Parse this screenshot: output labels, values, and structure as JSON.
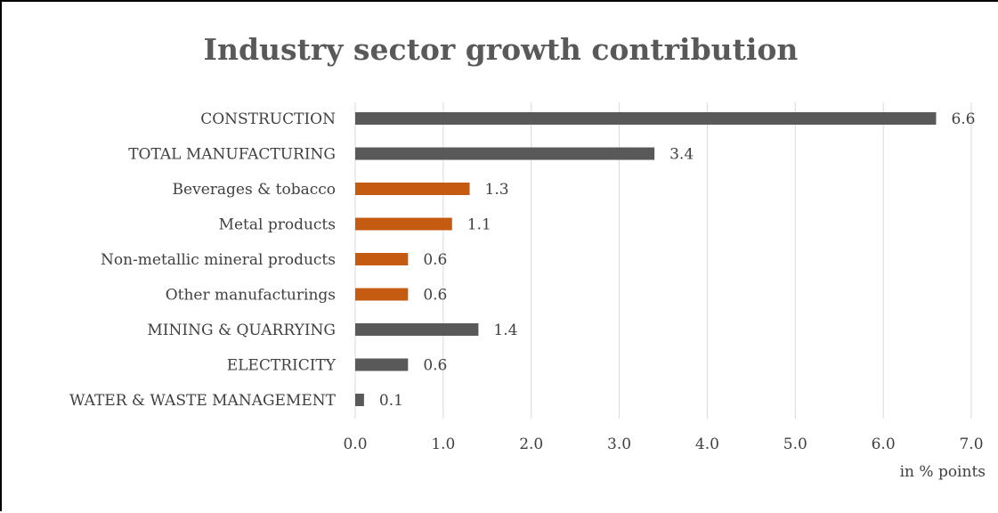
{
  "chart_data": {
    "type": "bar",
    "orientation": "horizontal",
    "title": "Industry sector growth contribution",
    "xlabel": "in % points",
    "ylabel": "",
    "xlim": [
      0,
      7
    ],
    "ticks": [
      "0.0",
      "1.0",
      "2.0",
      "3.0",
      "4.0",
      "5.0",
      "6.0",
      "7.0"
    ],
    "grid": true,
    "categories": [
      "CONSTRUCTION",
      "TOTAL MANUFACTURING",
      "Beverages & tobacco",
      "Metal products",
      "Non-metallic mineral products",
      "Other manufacturings",
      "MINING & QUARRYING",
      "ELECTRICITY",
      "WATER & WASTE MANAGEMENT"
    ],
    "values": [
      6.6,
      3.4,
      1.3,
      1.1,
      0.6,
      0.6,
      1.4,
      0.6,
      0.1
    ],
    "data_labels": [
      "6.6",
      "3.4",
      "1.3",
      "1.1",
      "0.6",
      "0.6",
      "1.4",
      "0.6",
      "0.1"
    ],
    "bar_colors": [
      "#595959",
      "#595959",
      "#c55a11",
      "#c55a11",
      "#c55a11",
      "#c55a11",
      "#595959",
      "#595959",
      "#595959"
    ],
    "colors": {
      "main": "#595959",
      "sub_sector": "#c55a11",
      "grid": "#d9d9d9",
      "text": "#404040"
    }
  }
}
